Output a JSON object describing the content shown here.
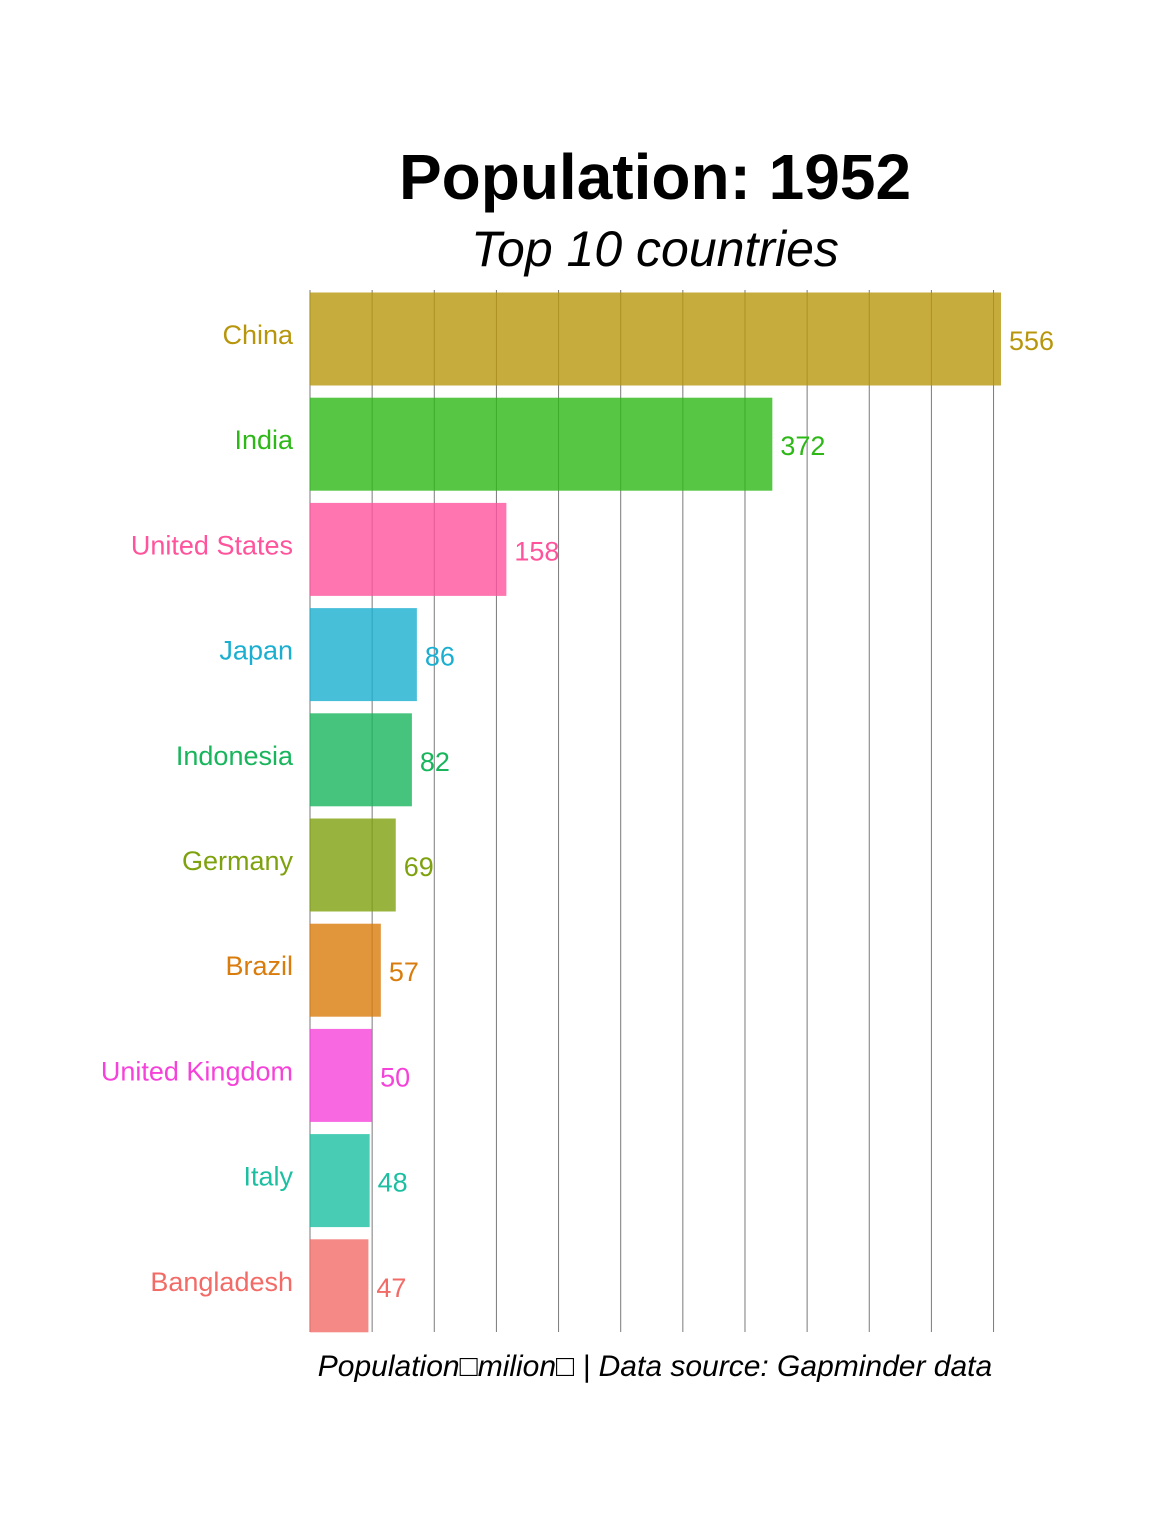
{
  "chart_data": {
    "type": "bar",
    "orientation": "horizontal",
    "title": "Population: 1952",
    "subtitle": "Top 10 countries",
    "caption": "Population□milion□ | Data source: Gapminder data",
    "xlim": [
      0,
      570
    ],
    "grid": true,
    "categories": [
      "China",
      "India",
      "United States",
      "Japan",
      "Indonesia",
      "Germany",
      "Brazil",
      "United Kingdom",
      "Italy",
      "Bangladesh"
    ],
    "values": [
      556,
      372,
      158,
      86,
      82,
      69,
      57,
      50,
      48,
      47
    ],
    "value_labels": [
      "556",
      "372",
      "158",
      "86",
      "82",
      "69",
      "57",
      "50",
      "48",
      "47"
    ],
    "colors": [
      "#b8960c",
      "#2db817",
      "#ff539c",
      "#1aafd0",
      "#18b55c",
      "#7ea10e",
      "#d97c0b",
      "#f542d9",
      "#1cbfa1",
      "#f26b66"
    ]
  }
}
